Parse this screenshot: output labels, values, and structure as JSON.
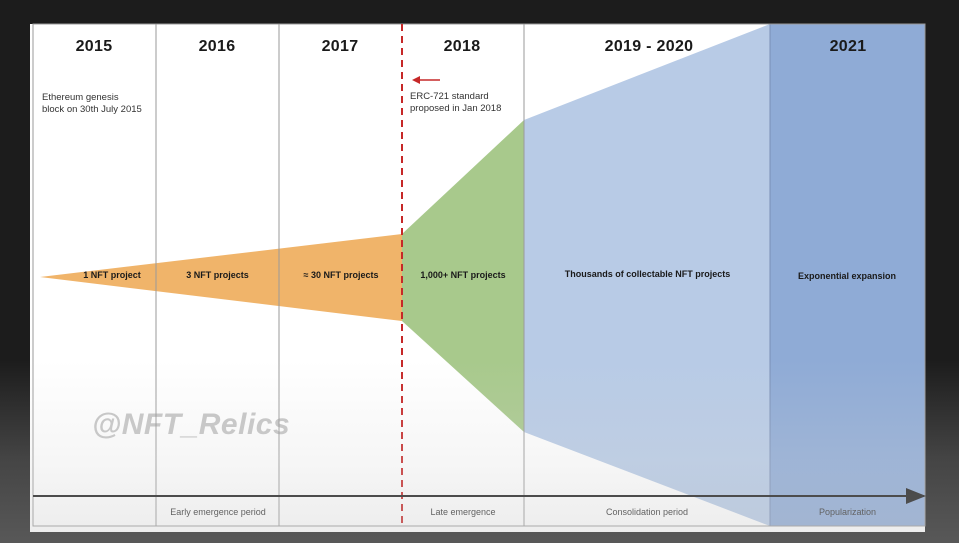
{
  "years": [
    "2015",
    "2016",
    "2017",
    "2018",
    "2019 - 2020",
    "2021"
  ],
  "notes": {
    "genesis": "Ethereum genesis block on 30th July 2015",
    "erc721": "ERC-721 standard proposed in Jan 2018"
  },
  "projects": {
    "p2015": "1 NFT project",
    "p2016": "3 NFT projects",
    "p2017": "≈ 30 NFT projects",
    "p2018": "1,000+ NFT projects",
    "p2019": "Thousands of collectable NFT projects",
    "p2021": "Exponential expansion"
  },
  "periods": [
    "Early emergence period",
    "Late emergence",
    "Consolidation period",
    "Popularization"
  ],
  "watermark": "@NFT_Relics",
  "colors": {
    "early": "#f0b46a",
    "late": "#a8c98c",
    "consolidation": "#b8cbe6",
    "popularization": "#8fabd6",
    "divider": "#c62828"
  }
}
